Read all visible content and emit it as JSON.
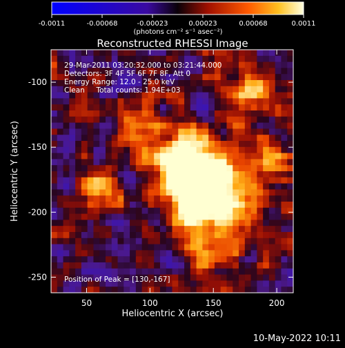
{
  "colorbar": {
    "tick_labels": [
      "-0.0011",
      "-0.00068",
      "-0.00023",
      "0.00023",
      "0.00068",
      "0.0011"
    ],
    "unit_label": "(photons cm⁻² s⁻¹ asec⁻²)"
  },
  "chart_data": {
    "type": "heatmap",
    "title": "Reconstructed RHESSI Image",
    "xlabel": "Heliocentric X (arcsec)",
    "ylabel": "Heliocentric Y (arcsec)",
    "xlim": [
      22,
      213
    ],
    "ylim": [
      -262,
      -75
    ],
    "x_ticks": [
      50,
      100,
      150,
      200
    ],
    "y_ticks": [
      -100,
      -150,
      -200,
      -250
    ],
    "annotations": [
      "29-Mar-2011 03:20:32.000 to 03:21:44.000",
      "Detectors: 3F 4F 5F 6F 7F 8F, Att 0",
      "Energy Range: 12.0 - 25.0 keV",
      "Clean     Total counts: 1.94E+03"
    ],
    "peak_label": "Position of Peak = [130,-167]",
    "peak_position": [
      130,
      -167
    ],
    "colorscale_range": [
      -0.0011,
      0.0011
    ]
  },
  "footer": {
    "timestamp": "10-May-2022 10:11"
  }
}
